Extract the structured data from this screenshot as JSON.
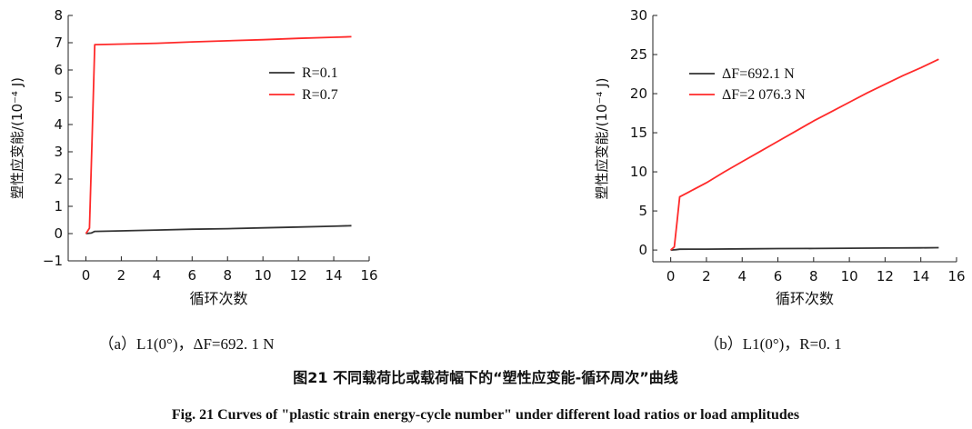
{
  "chart_data": [
    {
      "type": "line",
      "subcaption": "（a）L1(0°)，ΔF=692. 1 N",
      "xlabel": "循环次数",
      "ylabel": "塑性应变能/(10⁻⁴ J)",
      "xlim": [
        -1,
        16
      ],
      "ylim": [
        -1,
        8
      ],
      "xticks": [
        0,
        2,
        4,
        6,
        8,
        10,
        12,
        14,
        16
      ],
      "yticks": [
        -1,
        0,
        1,
        2,
        3,
        4,
        5,
        6,
        7,
        8
      ],
      "legend_position": "upper-right",
      "series": [
        {
          "name": "R=0.1",
          "legend_label": "R=0.1",
          "color": "#333333",
          "x": [
            0,
            0.3,
            0.5,
            2,
            4,
            6,
            8,
            10,
            12,
            14,
            15
          ],
          "y": [
            0,
            0.02,
            0.08,
            0.1,
            0.13,
            0.16,
            0.18,
            0.21,
            0.24,
            0.27,
            0.29
          ]
        },
        {
          "name": "R=0.7",
          "legend_label": "R=0.7",
          "color": "#ff2a2a",
          "x": [
            0,
            0.2,
            0.35,
            0.5,
            2,
            4,
            6,
            8,
            10,
            12,
            14,
            15
          ],
          "y": [
            0,
            0.2,
            3.5,
            6.93,
            6.95,
            6.98,
            7.03,
            7.07,
            7.11,
            7.16,
            7.2,
            7.22
          ]
        }
      ]
    },
    {
      "type": "line",
      "subcaption": "（b）L1(0°)，R=0. 1",
      "xlabel": "循环次数",
      "ylabel": "塑性应变能/(10⁻⁴ J)",
      "xlim": [
        -1,
        16
      ],
      "ylim": [
        -1.5,
        30
      ],
      "xticks": [
        0,
        2,
        4,
        6,
        8,
        10,
        12,
        14,
        16
      ],
      "yticks": [
        0,
        5,
        10,
        15,
        20,
        25,
        30
      ],
      "legend_position": "upper-left",
      "series": [
        {
          "name": "ΔF=692.1 N",
          "legend_label": "ΔF=692.1 N",
          "color": "#333333",
          "x": [
            0,
            0.3,
            0.5,
            2,
            4,
            6,
            8,
            10,
            12,
            14,
            15
          ],
          "y": [
            0,
            0.05,
            0.1,
            0.12,
            0.15,
            0.18,
            0.2,
            0.23,
            0.26,
            0.28,
            0.3
          ]
        },
        {
          "name": "ΔF=2 076.3 N",
          "legend_label": "ΔF=2 076.3 N",
          "color": "#ff2a2a",
          "x": [
            0,
            0.2,
            0.35,
            0.5,
            1,
            2,
            3,
            4,
            5,
            6,
            7,
            8,
            9,
            10,
            11,
            12,
            13,
            14,
            15
          ],
          "y": [
            0,
            0.4,
            3.5,
            6.8,
            7.4,
            8.6,
            10.0,
            11.3,
            12.6,
            13.9,
            15.2,
            16.5,
            17.7,
            18.9,
            20.1,
            21.2,
            22.3,
            23.3,
            24.4
          ]
        }
      ]
    }
  ],
  "caption": {
    "cn": "图21   不同载荷比或载荷幅下的“塑性应变能-循环周次”曲线",
    "en": "Fig. 21    Curves of \"plastic strain energy-cycle number\" under different load ratios or load amplitudes"
  }
}
